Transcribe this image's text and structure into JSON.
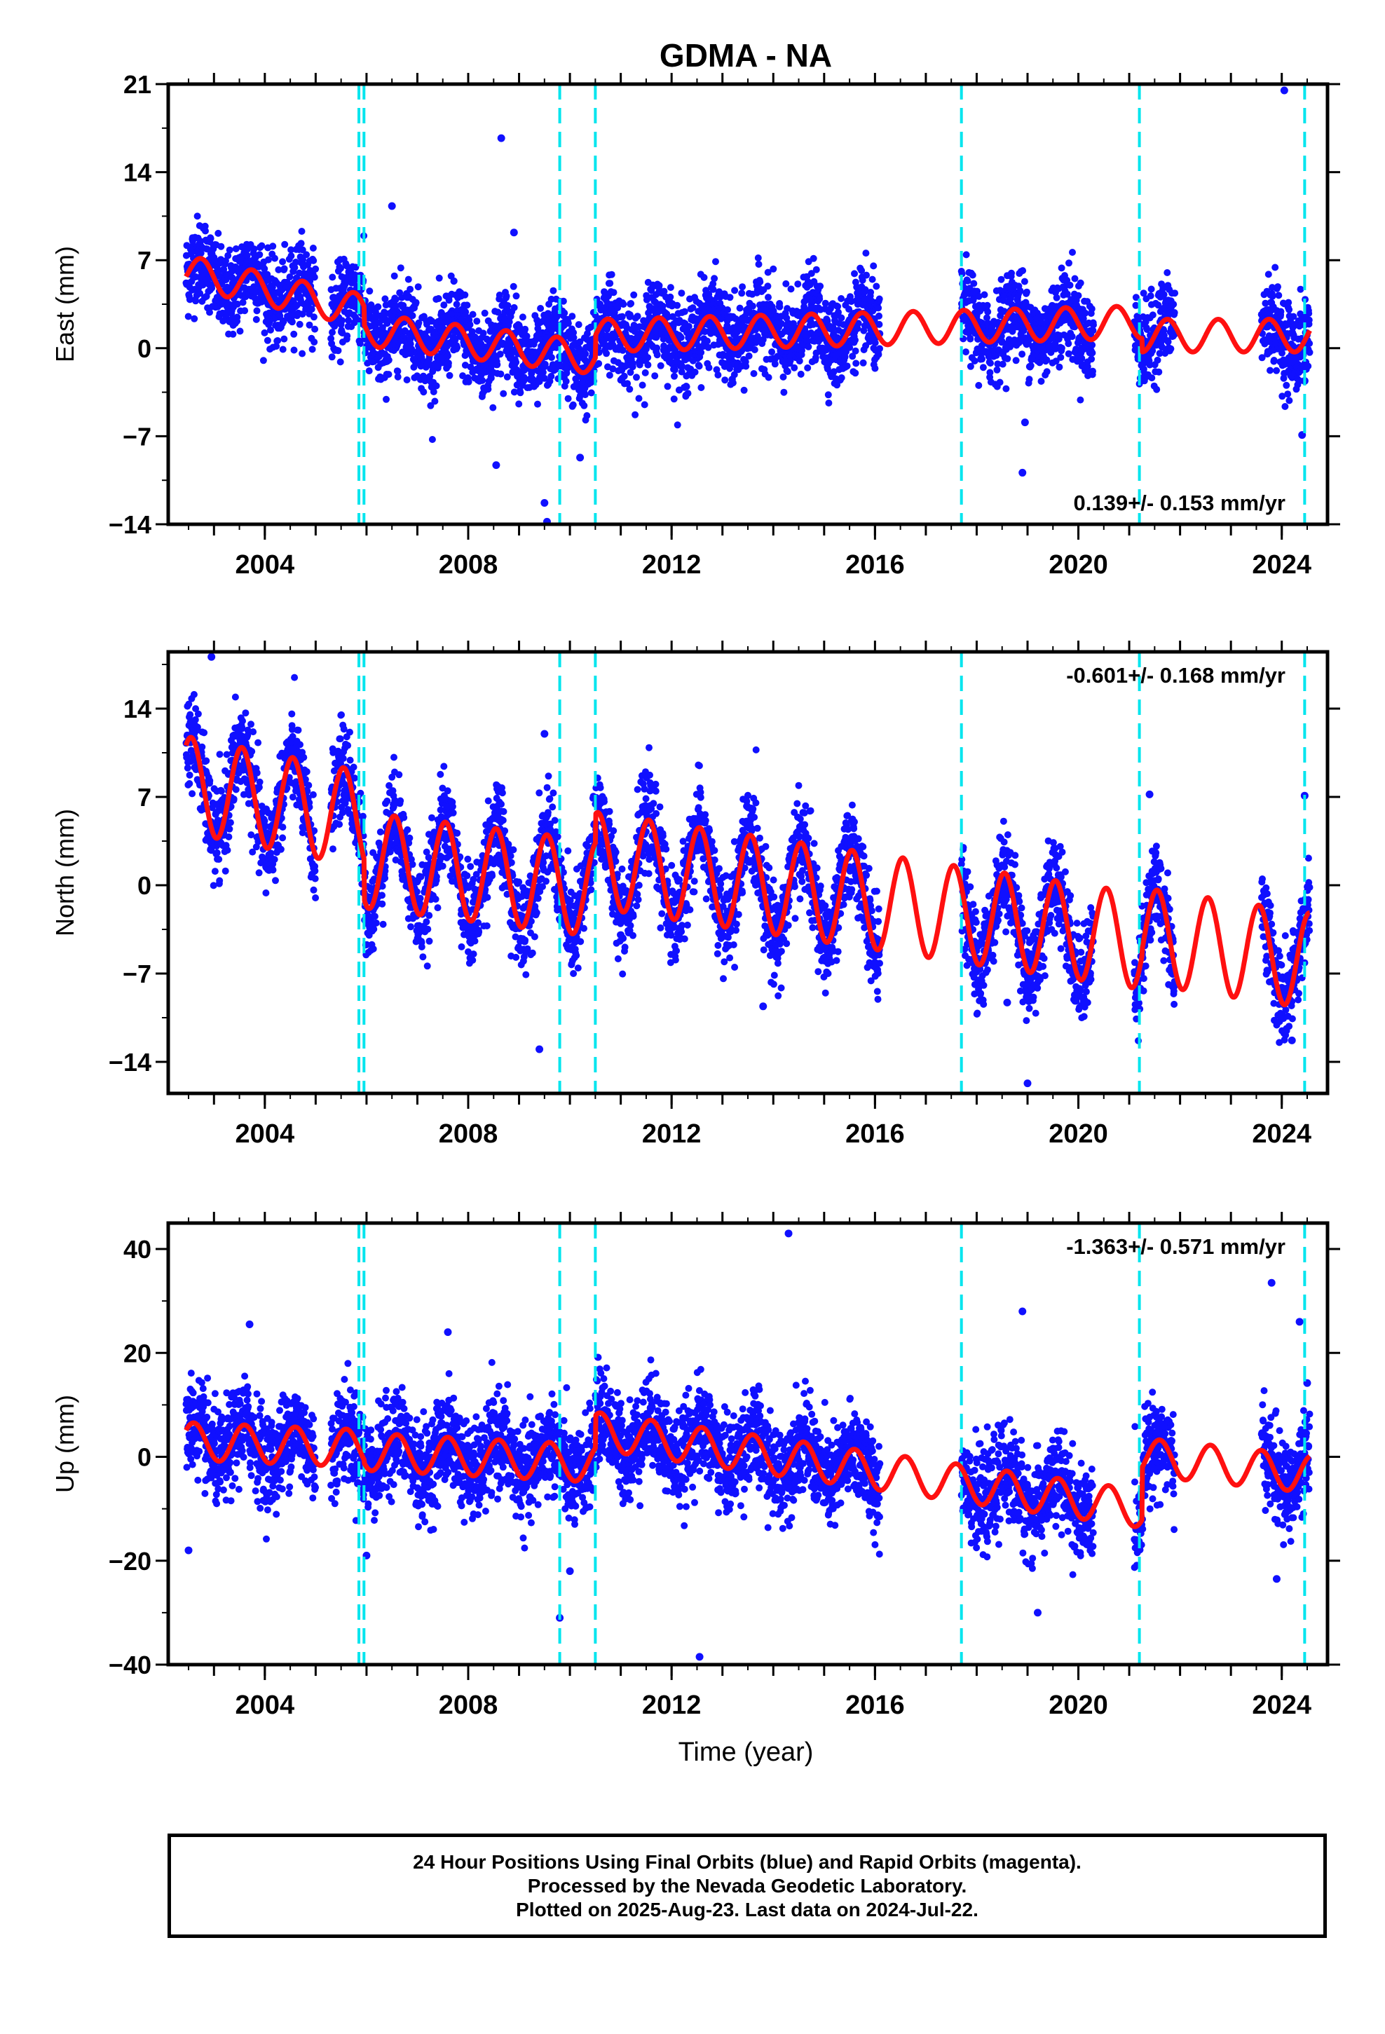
{
  "chart_data": [
    {
      "type": "scatter",
      "title": "GDMA - NA",
      "ylabel": "East (mm)",
      "xlabel": "",
      "xlim": [
        2002.1,
        2024.9
      ],
      "ylim": [
        -14,
        21
      ],
      "yticks": [
        -14,
        -7,
        0,
        7,
        14,
        21
      ],
      "xticks": [
        2004,
        2008,
        2012,
        2016,
        2020,
        2024
      ],
      "grid": false,
      "rate_text": "0.139+/- 0.153 mm/yr",
      "rate_position": "bottom-right",
      "colors": {
        "points": "#1010ff",
        "model": "#ff1010",
        "steps": "#00e5ee"
      },
      "points": {
        "coverage": [
          [
            2002.4,
            2005.0
          ],
          [
            2005.3,
            2016.1
          ],
          [
            2017.7,
            2020.3
          ],
          [
            2021.1,
            2021.9
          ],
          [
            2023.6,
            2024.55
          ]
        ],
        "spread_mm": 1.7,
        "outliers": [
          [
            2006.5,
            11.3
          ],
          [
            2008.65,
            16.7
          ],
          [
            2008.9,
            9.2
          ],
          [
            2008.55,
            -9.3
          ],
          [
            2009.5,
            -12.3
          ],
          [
            2009.55,
            -13.8
          ],
          [
            2010.2,
            -8.7
          ],
          [
            2018.9,
            -9.9
          ],
          [
            2018.95,
            -5.9
          ],
          [
            2024.05,
            20.5
          ],
          [
            2024.4,
            -6.9
          ],
          [
            2024.45,
            -2.6
          ]
        ]
      },
      "model": {
        "segments": [
          [
            2002.45,
            2005.95
          ],
          [
            2005.95,
            2010.5
          ],
          [
            2010.5,
            2021.25
          ],
          [
            2021.25,
            2024.55
          ]
        ],
        "offset_mm": [
          6.1,
          1.5,
          1.0,
          1.0
        ],
        "rate_mm_per_yr": [
          -0.9,
          -0.5,
          0.1,
          0.0
        ],
        "annual_amplitude_mm": 1.3,
        "annual_phase_peak": 0.75
      },
      "step_lines": [
        2005.85,
        2005.95,
        2009.8,
        2010.5,
        2017.7,
        2021.2,
        2024.45
      ]
    },
    {
      "type": "scatter",
      "title": "",
      "ylabel": "North (mm)",
      "xlabel": "",
      "xlim": [
        2002.1,
        2024.9
      ],
      "ylim": [
        -16.5,
        18.5
      ],
      "yticks": [
        -14,
        -7,
        0,
        7,
        14
      ],
      "xticks": [
        2004,
        2008,
        2012,
        2016,
        2020,
        2024
      ],
      "grid": false,
      "rate_text": "-0.601+/- 0.168 mm/yr",
      "rate_position": "top-right",
      "colors": {
        "points": "#1010ff",
        "model": "#ff1010",
        "steps": "#00e5ee"
      },
      "points": {
        "coverage": [
          [
            2002.4,
            2005.0
          ],
          [
            2005.3,
            2016.1
          ],
          [
            2017.7,
            2020.3
          ],
          [
            2021.1,
            2021.9
          ],
          [
            2023.6,
            2024.55
          ]
        ],
        "spread_mm": 1.8,
        "outliers": [
          [
            2002.95,
            18.1
          ],
          [
            2009.5,
            12.0
          ],
          [
            2009.4,
            -13.0
          ],
          [
            2013.8,
            -9.6
          ],
          [
            2019.0,
            -15.7
          ],
          [
            2018.6,
            -9.3
          ],
          [
            2021.4,
            7.2
          ],
          [
            2024.2,
            -12.3
          ],
          [
            2024.45,
            7.1
          ]
        ]
      },
      "model": {
        "segments": [
          [
            2002.45,
            2005.95
          ],
          [
            2005.95,
            2010.5
          ],
          [
            2010.5,
            2021.25
          ],
          [
            2021.25,
            2024.55
          ]
        ],
        "offset_mm": [
          8.0,
          2.0,
          2.0,
          -4.0
        ],
        "rate_mm_per_yr": [
          -0.8,
          -0.5,
          -0.6,
          -0.6
        ],
        "annual_amplitude_mm": 3.8,
        "annual_phase_peak": 0.55
      },
      "step_lines": [
        2005.85,
        2005.95,
        2009.8,
        2010.5,
        2017.7,
        2021.2,
        2024.45
      ]
    },
    {
      "type": "scatter",
      "title": "",
      "ylabel": "Up (mm)",
      "xlabel": "Time (year)",
      "xlim": [
        2002.1,
        2024.9
      ],
      "ylim": [
        -40,
        45
      ],
      "yticks": [
        -40,
        -20,
        0,
        20,
        40
      ],
      "xticks": [
        2004,
        2008,
        2012,
        2016,
        2020,
        2024
      ],
      "grid": false,
      "rate_text": "-1.363+/- 0.571 mm/yr",
      "rate_position": "top-right",
      "colors": {
        "points": "#1010ff",
        "model": "#ff1010",
        "steps": "#00e5ee"
      },
      "points": {
        "coverage": [
          [
            2002.4,
            2005.0
          ],
          [
            2005.3,
            2016.1
          ],
          [
            2017.7,
            2020.3
          ],
          [
            2021.1,
            2021.9
          ],
          [
            2023.6,
            2024.55
          ]
        ],
        "spread_mm": 4.5,
        "outliers": [
          [
            2003.7,
            25.5
          ],
          [
            2014.3,
            43.0
          ],
          [
            2012.55,
            -38.5
          ],
          [
            2009.8,
            -31.0
          ],
          [
            2010.0,
            -22.0
          ],
          [
            2018.9,
            28.0
          ],
          [
            2019.2,
            -30.0
          ],
          [
            2023.8,
            33.5
          ],
          [
            2023.9,
            -23.5
          ],
          [
            2024.35,
            26.0
          ],
          [
            2024.5,
            14.2
          ],
          [
            2002.5,
            -18.0
          ],
          [
            2006.0,
            -19.0
          ],
          [
            2007.6,
            24.0
          ]
        ]
      },
      "model": {
        "segments": [
          [
            2002.45,
            2005.95
          ],
          [
            2005.95,
            2010.5
          ],
          [
            2010.5,
            2021.25
          ],
          [
            2021.25,
            2024.55
          ]
        ],
        "offset_mm": [
          3.0,
          1.0,
          5.0,
          0.0
        ],
        "rate_mm_per_yr": [
          -0.4,
          -0.5,
          -1.4,
          -1.0
        ],
        "annual_amplitude_mm": 3.6,
        "annual_phase_peak": 0.6
      },
      "step_lines": [
        2005.85,
        2005.95,
        2009.8,
        2010.5,
        2017.7,
        2021.2,
        2024.45
      ]
    }
  ],
  "caption": {
    "line1": "24 Hour Positions Using Final Orbits (blue) and Rapid Orbits (magenta).",
    "line2": "Processed by the Nevada Geodetic Laboratory.",
    "line3": "Plotted on 2025-Aug-23. Last data on 2024-Jul-22."
  }
}
